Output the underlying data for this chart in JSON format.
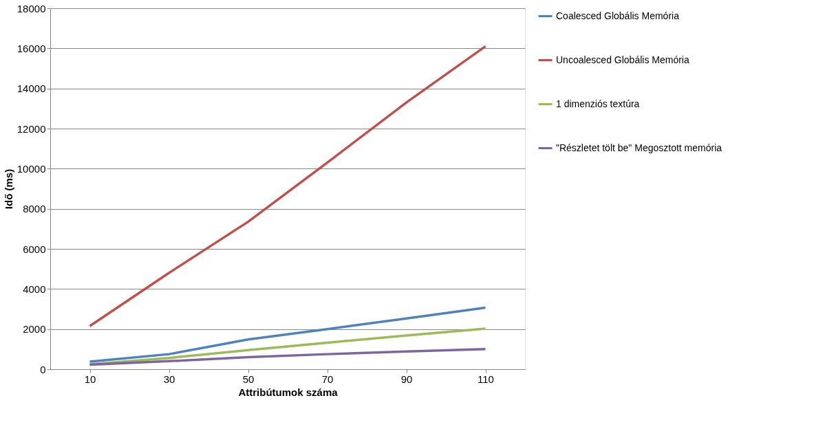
{
  "chart_data": {
    "type": "line",
    "xlabel": "Attribútumok száma",
    "ylabel": "Idő (ms)",
    "categories": [
      "10",
      "30",
      "50",
      "70",
      "90",
      "110"
    ],
    "ylim": [
      0,
      18000
    ],
    "yticks": [
      0,
      2000,
      4000,
      6000,
      8000,
      10000,
      12000,
      14000,
      16000,
      18000
    ],
    "grid": "y",
    "legend": "right",
    "marker": "none",
    "line_style": "solid",
    "series": [
      {
        "name": "Coalesced Globális Memória",
        "color": "#4f81bd",
        "values": [
          380,
          750,
          1480,
          2000,
          2530,
          3070
        ]
      },
      {
        "name": "Uncoalesced Globális Memória",
        "color": "#c0504d",
        "values": [
          2150,
          4800,
          7350,
          10300,
          13300,
          16100
        ]
      },
      {
        "name": "1 dimenziós textúra",
        "color": "#9bbb59",
        "values": [
          250,
          560,
          950,
          1320,
          1680,
          2020
        ]
      },
      {
        "name": "\"Részletet tölt be\" Megosztott memória",
        "color": "#8064a2",
        "values": [
          220,
          400,
          600,
          750,
          880,
          1000
        ]
      }
    ]
  }
}
